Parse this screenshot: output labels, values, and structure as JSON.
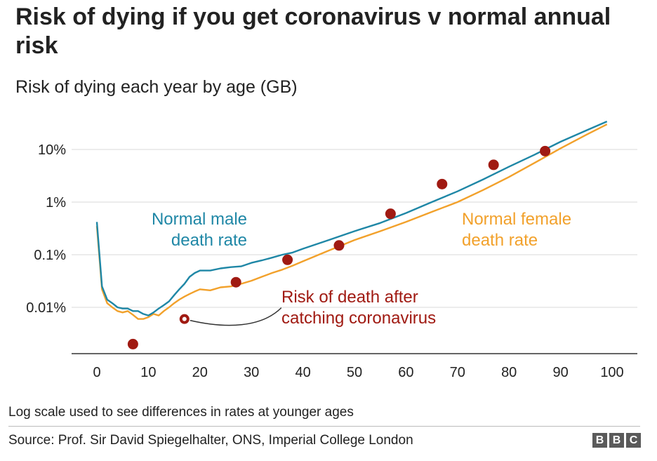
{
  "header": {
    "title": "Risk of dying if you get coronavirus v normal annual risk",
    "subtitle": "Risk of dying each year by age (GB)"
  },
  "footer": {
    "note": "Log scale used to see differences in rates at younger ages",
    "source": "Source: Prof. Sir David Spiegelhalter, ONS, Imperial College London",
    "logo_letters": [
      "B",
      "B",
      "C"
    ]
  },
  "colors": {
    "male": "#1f87a6",
    "female": "#f2a12b",
    "covid": "#a01a12",
    "grid": "#d9d9d9",
    "axis": "#333333"
  },
  "chart_data": {
    "type": "line",
    "title": "Risk of dying each year by age (GB)",
    "xlabel": "",
    "ylabel": "",
    "y_scale": "log",
    "xlim": [
      0,
      100
    ],
    "ylim": [
      0.0009,
      60
    ],
    "x_ticks": [
      0,
      10,
      20,
      30,
      40,
      50,
      60,
      70,
      80,
      90,
      100
    ],
    "y_ticks": [
      {
        "value": 0.01,
        "label": "0.01%"
      },
      {
        "value": 0.1,
        "label": "0.1%"
      },
      {
        "value": 1,
        "label": "1%"
      },
      {
        "value": 10,
        "label": "10%"
      }
    ],
    "grid": "horizontal",
    "series": [
      {
        "name": "Normal male death rate",
        "label_lines": [
          "Normal male",
          "death rate"
        ],
        "unit": "%",
        "x": [
          0,
          1,
          2,
          3,
          4,
          5,
          6,
          7,
          8,
          9,
          10,
          11,
          12,
          13,
          14,
          15,
          16,
          17,
          18,
          19,
          20,
          22,
          24,
          26,
          28,
          30,
          32,
          34,
          36,
          38,
          40,
          45,
          50,
          55,
          60,
          65,
          70,
          75,
          80,
          85,
          90,
          95,
          99
        ],
        "values": [
          0.42,
          0.025,
          0.014,
          0.012,
          0.01,
          0.0095,
          0.0095,
          0.0085,
          0.0085,
          0.0075,
          0.007,
          0.008,
          0.0095,
          0.011,
          0.013,
          0.017,
          0.022,
          0.028,
          0.038,
          0.045,
          0.05,
          0.05,
          0.055,
          0.058,
          0.06,
          0.07,
          0.078,
          0.088,
          0.1,
          0.11,
          0.13,
          0.19,
          0.28,
          0.4,
          0.62,
          1.0,
          1.6,
          2.7,
          4.7,
          8.0,
          14.0,
          23.0,
          34.0
        ]
      },
      {
        "name": "Normal female death rate",
        "label_lines": [
          "Normal female",
          "death rate"
        ],
        "unit": "%",
        "x": [
          0,
          1,
          2,
          3,
          4,
          5,
          6,
          7,
          8,
          9,
          10,
          11,
          12,
          13,
          14,
          15,
          16,
          17,
          18,
          19,
          20,
          22,
          24,
          26,
          28,
          30,
          32,
          34,
          36,
          38,
          40,
          45,
          50,
          55,
          60,
          65,
          70,
          75,
          80,
          85,
          90,
          95,
          99
        ],
        "values": [
          0.35,
          0.022,
          0.012,
          0.01,
          0.0085,
          0.008,
          0.0085,
          0.0072,
          0.006,
          0.006,
          0.0065,
          0.0075,
          0.007,
          0.0085,
          0.01,
          0.012,
          0.014,
          0.016,
          0.018,
          0.02,
          0.022,
          0.021,
          0.024,
          0.025,
          0.028,
          0.032,
          0.038,
          0.045,
          0.052,
          0.062,
          0.075,
          0.12,
          0.19,
          0.28,
          0.42,
          0.65,
          1.0,
          1.7,
          3.0,
          5.6,
          10.5,
          19.0,
          30.0
        ]
      },
      {
        "name": "Risk of death after catching coronavirus",
        "label_lines": [
          "Risk of death after",
          "catching coronavirus"
        ],
        "type": "scatter",
        "unit": "%",
        "x": [
          7,
          17,
          27,
          37,
          47,
          57,
          67,
          77,
          87
        ],
        "values": [
          0.002,
          0.006,
          0.03,
          0.08,
          0.15,
          0.6,
          2.2,
          5.1,
          9.3
        ]
      }
    ]
  }
}
